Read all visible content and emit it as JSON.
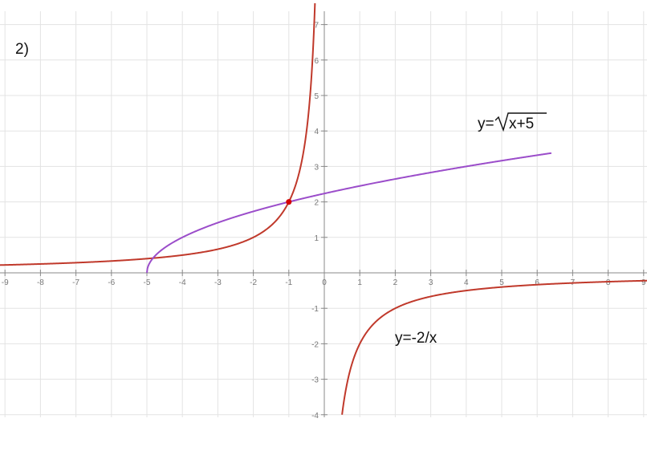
{
  "panel_label": "2)",
  "chart_data": {
    "type": "line",
    "title": "",
    "xlabel": "",
    "ylabel": "",
    "xlim": [
      -9.2,
      9.2
    ],
    "ylim": [
      -4,
      7.6
    ],
    "grid": true,
    "x_ticks": [
      -9,
      -8,
      -7,
      -6,
      -5,
      -4,
      -3,
      -2,
      -1,
      0,
      1,
      2,
      3,
      4,
      5,
      6,
      7,
      8,
      9
    ],
    "y_ticks": [
      -4,
      -3,
      -2,
      -1,
      1,
      2,
      3,
      4,
      5,
      6,
      7
    ],
    "series": [
      {
        "label": "y=-2/x",
        "function": "-2/x",
        "color": "#c0392b",
        "domain": [
          -9.2,
          9.2
        ]
      },
      {
        "label_prefix": "y=",
        "label_radicand": "x+5",
        "function": "sqrt(x+5)",
        "color": "#9b4dca",
        "domain": [
          -5,
          6.4
        ]
      }
    ],
    "intersection": {
      "x": -1,
      "y": 2,
      "color": "#d40000"
    }
  }
}
